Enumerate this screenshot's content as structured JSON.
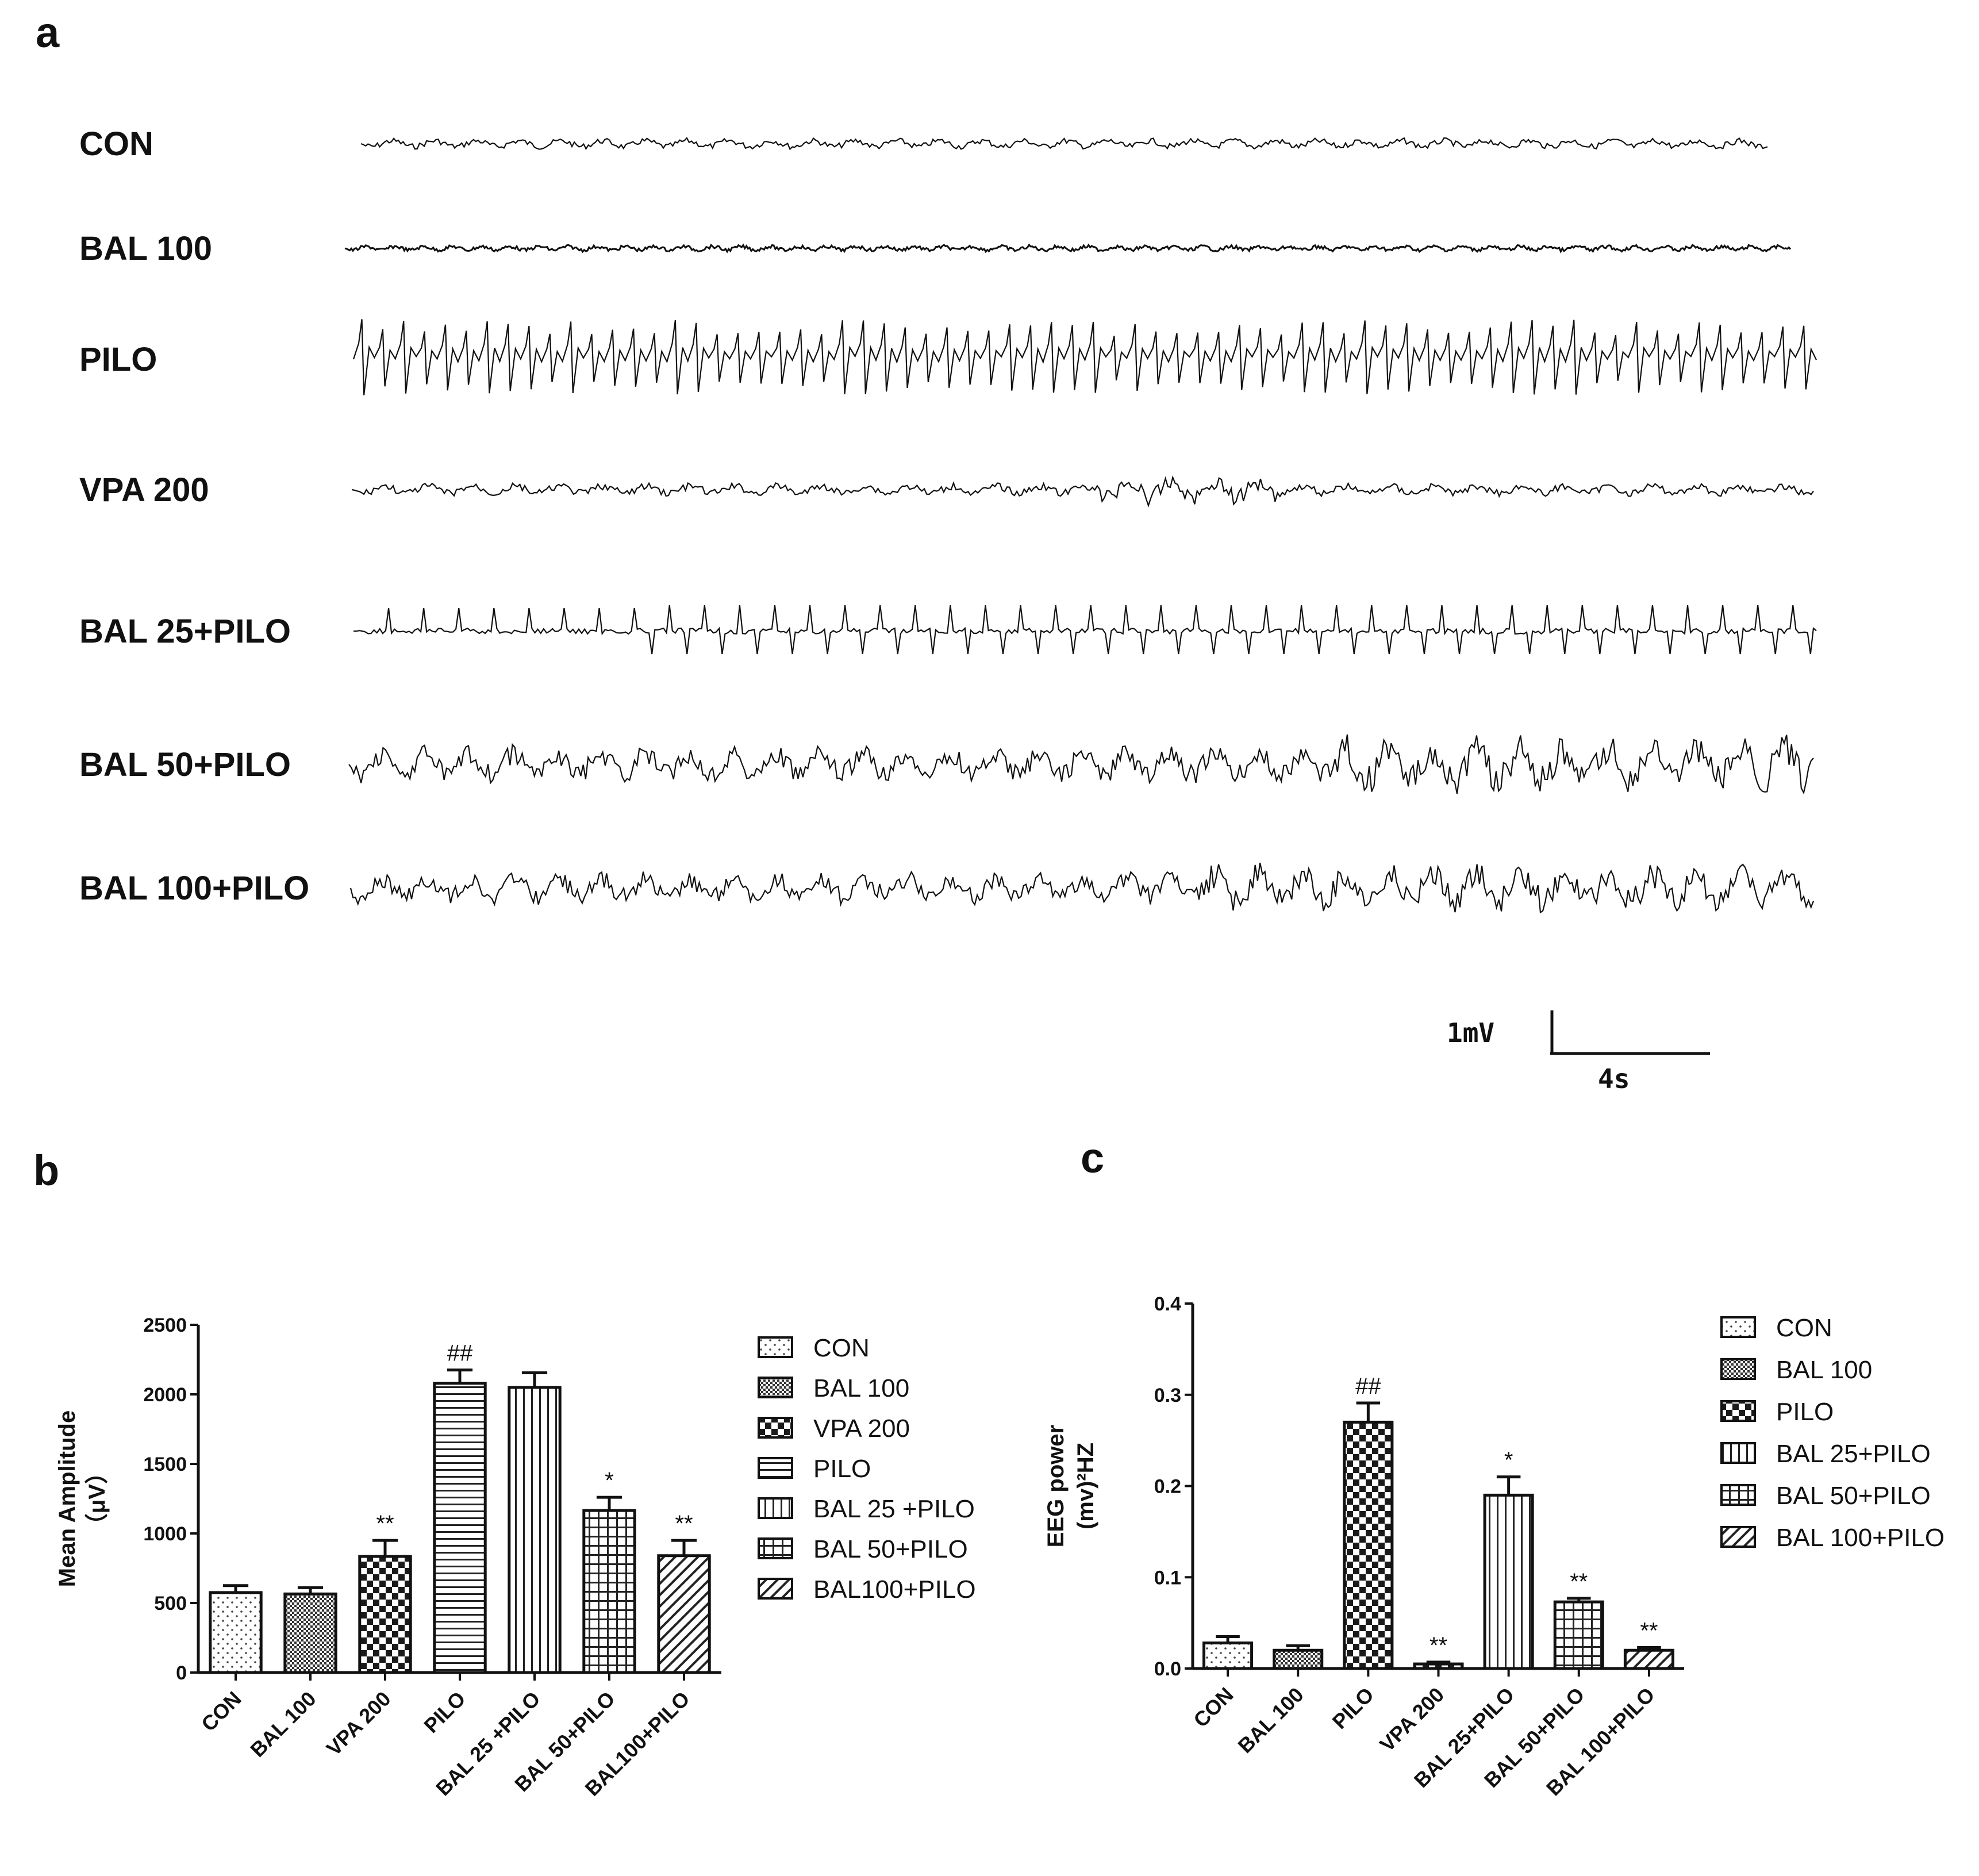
{
  "panel_a": {
    "letter": "a",
    "traces": [
      {
        "label": "CON"
      },
      {
        "label": "BAL 100"
      },
      {
        "label": "PILO"
      },
      {
        "label": "VPA 200"
      },
      {
        "label": "BAL 25+PILO"
      },
      {
        "label": "BAL 50+PILO"
      },
      {
        "label": "BAL 100+PILO"
      }
    ],
    "scale_bar": {
      "voltage": "1mV",
      "time": "4s"
    }
  },
  "chart_data": [
    {
      "panel": "b",
      "type": "bar",
      "ylabel_line1": "Mean Amplitude",
      "ylabel_line2": "（μV）",
      "ylim": [
        0,
        2500
      ],
      "yticks": [
        "0",
        "500",
        "1000",
        "1500",
        "2000",
        "2500"
      ],
      "categories": [
        "CON",
        "BAL 100",
        "VPA 200",
        "PILO",
        "BAL 25 +PILO",
        "BAL 50+PILO",
        "BAL100+PILO"
      ],
      "values": [
        575,
        565,
        835,
        2080,
        2050,
        1165,
        840
      ],
      "errors": [
        50,
        45,
        115,
        95,
        105,
        95,
        110
      ],
      "annotations": [
        "",
        "",
        "**",
        "##",
        "",
        "*",
        "**"
      ],
      "patterns": [
        "dots",
        "fine",
        "checker",
        "hlines",
        "vlines",
        "grid",
        "diag"
      ],
      "legend": [
        "CON",
        "BAL 100",
        "VPA 200",
        "PILO",
        "BAL 25 +PILO",
        "BAL 50+PILO",
        "BAL100+PILO"
      ]
    },
    {
      "panel": "c",
      "type": "bar",
      "ylabel_line1": "EEG power",
      "ylabel_line2": "(mv)²HZ",
      "ylim": [
        0,
        0.4
      ],
      "yticks": [
        "0.0",
        "0.1",
        "0.2",
        "0.3",
        "0.4"
      ],
      "categories": [
        "CON",
        "BAL 100",
        "PILO",
        "VPA 200",
        "BAL 25+PILO",
        "BAL 50+PILO",
        "BAL 100+PILO"
      ],
      "values": [
        0.028,
        0.02,
        0.27,
        0.005,
        0.19,
        0.073,
        0.02
      ],
      "errors": [
        0.007,
        0.005,
        0.021,
        0.002,
        0.02,
        0.004,
        0.003
      ],
      "annotations": [
        "",
        "",
        "##",
        "**",
        "*",
        "**",
        "**"
      ],
      "patterns": [
        "dots",
        "fine",
        "checker",
        "checker",
        "vlines",
        "grid",
        "diag"
      ],
      "legend": [
        "CON",
        "BAL 100",
        "PILO",
        "BAL 25+PILO",
        "BAL 50+PILO",
        "BAL 100+PILO"
      ],
      "legend_patterns": [
        "dots",
        "fine",
        "checker",
        "vlines",
        "grid",
        "diag"
      ]
    }
  ]
}
